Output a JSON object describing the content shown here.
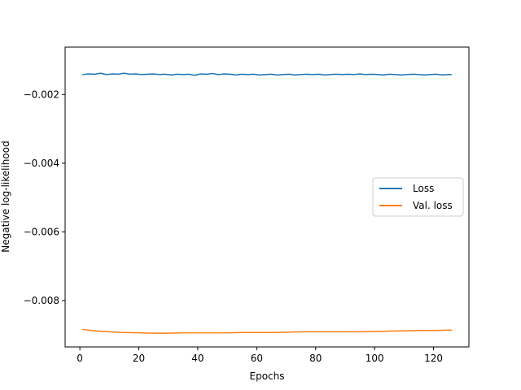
{
  "chart_data": {
    "type": "line",
    "xlabel": "Epochs",
    "ylabel": "Negative log-likelihood",
    "xlim": [
      -5,
      132
    ],
    "ylim": [
      -0.00935,
      -0.00062
    ],
    "xticks": [
      0,
      20,
      40,
      60,
      80,
      100,
      120
    ],
    "yticks": [
      -0.008,
      -0.006,
      -0.004,
      -0.002
    ],
    "grid": false,
    "legend_position": "center-right",
    "series": [
      {
        "name": "Loss",
        "color": "#1f77b4",
        "x": [
          1,
          3,
          5,
          7,
          9,
          11,
          13,
          15,
          17,
          19,
          21,
          23,
          25,
          27,
          29,
          31,
          33,
          35,
          37,
          39,
          41,
          43,
          45,
          47,
          49,
          51,
          53,
          55,
          57,
          59,
          61,
          63,
          65,
          67,
          69,
          71,
          73,
          75,
          77,
          79,
          81,
          83,
          85,
          87,
          89,
          91,
          93,
          95,
          97,
          99,
          101,
          103,
          105,
          107,
          109,
          111,
          113,
          115,
          117,
          119,
          121,
          123,
          125,
          126
        ],
        "y": [
          -0.00142,
          -0.0014,
          -0.00141,
          -0.00138,
          -0.00142,
          -0.0014,
          -0.00141,
          -0.00138,
          -0.00141,
          -0.0014,
          -0.00142,
          -0.00141,
          -0.0014,
          -0.00142,
          -0.00141,
          -0.00143,
          -0.00141,
          -0.00142,
          -0.00141,
          -0.00144,
          -0.0014,
          -0.00141,
          -0.00139,
          -0.00142,
          -0.0014,
          -0.00141,
          -0.00143,
          -0.00141,
          -0.00142,
          -0.00141,
          -0.00143,
          -0.00142,
          -0.00141,
          -0.00143,
          -0.00142,
          -0.00141,
          -0.00143,
          -0.00142,
          -0.00141,
          -0.00142,
          -0.00141,
          -0.00143,
          -0.00142,
          -0.00141,
          -0.00142,
          -0.00141,
          -0.00142,
          -0.0014,
          -0.00142,
          -0.00141,
          -0.00142,
          -0.00143,
          -0.00141,
          -0.00142,
          -0.00143,
          -0.00142,
          -0.00141,
          -0.00142,
          -0.00143,
          -0.00142,
          -0.00141,
          -0.00143,
          -0.00142,
          -0.00142
        ]
      },
      {
        "name": "Val. loss",
        "color": "#ff7f0e",
        "x": [
          1,
          5,
          10,
          15,
          20,
          25,
          30,
          35,
          40,
          45,
          50,
          55,
          60,
          65,
          70,
          75,
          80,
          85,
          90,
          95,
          100,
          105,
          110,
          115,
          120,
          126
        ],
        "y": [
          -0.00884,
          -0.00888,
          -0.00891,
          -0.00893,
          -0.00894,
          -0.00895,
          -0.00895,
          -0.00894,
          -0.00894,
          -0.00894,
          -0.00894,
          -0.00893,
          -0.00893,
          -0.00893,
          -0.00892,
          -0.00891,
          -0.00891,
          -0.00891,
          -0.00891,
          -0.00891,
          -0.0089,
          -0.00889,
          -0.00888,
          -0.00887,
          -0.00887,
          -0.00886
        ]
      }
    ]
  }
}
